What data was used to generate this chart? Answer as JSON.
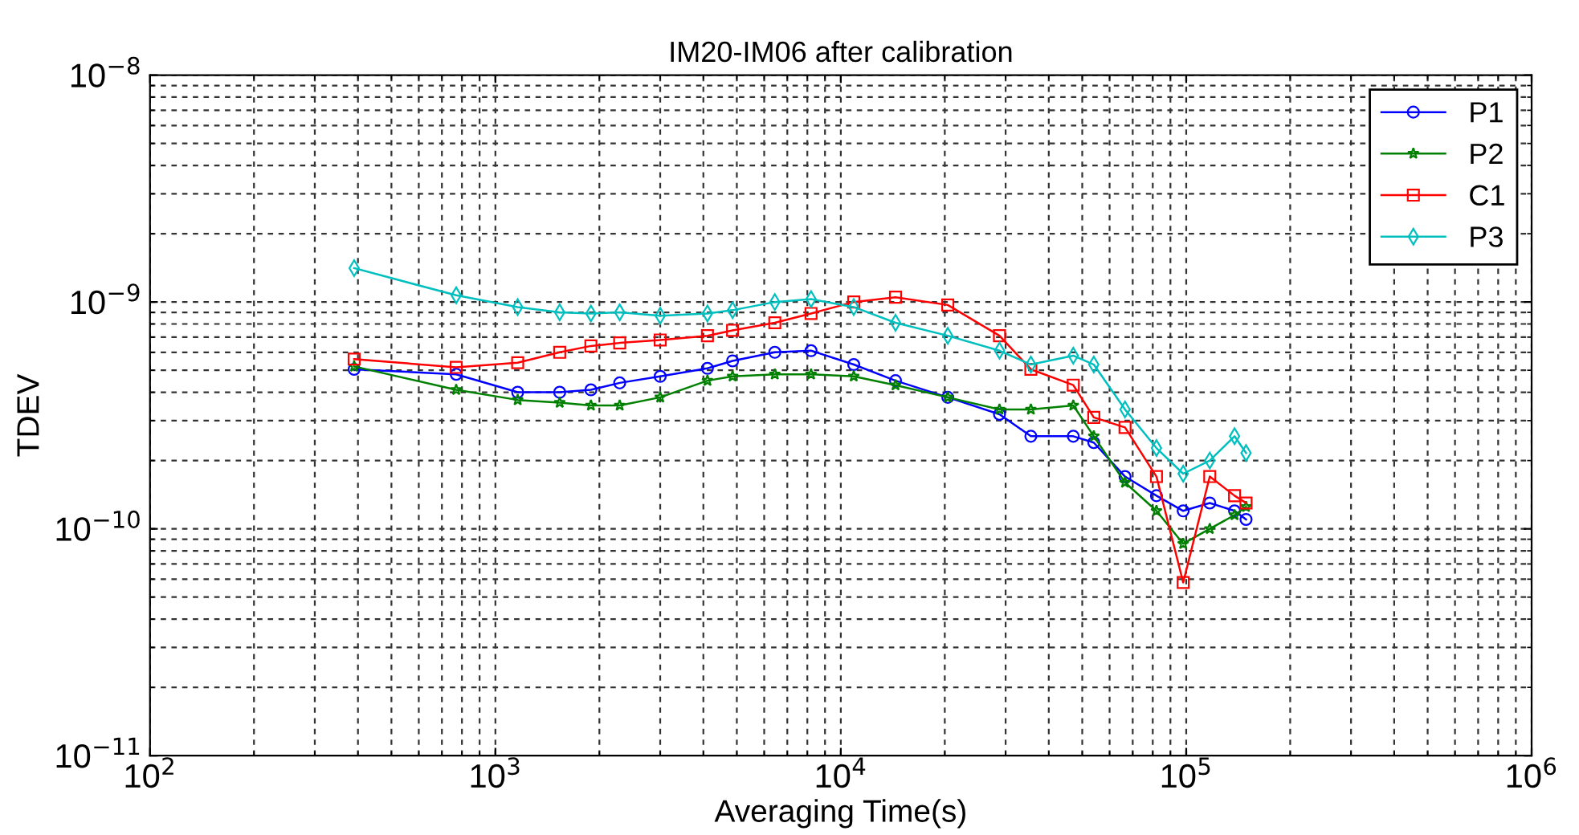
{
  "chart_data": {
    "type": "line",
    "title": "IM20-IM06 after calibration",
    "xlabel": "Averaging Time(s)",
    "ylabel": "TDEV",
    "log": "xy",
    "grid": true,
    "legend": "top right",
    "xlim": [
      100,
      1000000
    ],
    "ylim": [
      1e-11,
      1e-08
    ],
    "xticks": [
      {
        "value": 100,
        "label": "10$^{2}$"
      },
      {
        "value": 1000,
        "label": "10$^{3}$"
      },
      {
        "value": 10000,
        "label": "10$^{4}$"
      },
      {
        "value": 100000,
        "label": "10$^{5}$"
      },
      {
        "value": 1000000,
        "label": "10$^{6}$"
      }
    ],
    "yticks": [
      {
        "value": 1e-11,
        "label": "10$^{−11}$"
      },
      {
        "value": 1e-10,
        "label": "10$^{−10}$"
      },
      {
        "value": 1e-09,
        "label": "10$^{−9}$"
      },
      {
        "value": 1e-08,
        "label": "10$^{−8}$"
      }
    ],
    "x": [
      390,
      770,
      1160,
      1535,
      1890,
      2290,
      3000,
      4110,
      4860,
      6440,
      8200,
      10900,
      14400,
      20400,
      28800,
      35500,
      47100,
      54000,
      66500,
      82000,
      98000,
      117000,
      138000,
      149000
    ],
    "series": [
      {
        "name": "P1",
        "color": "#0000ff",
        "marker": "circle",
        "values": [
          5.05e-10,
          4.8e-10,
          4e-10,
          4e-10,
          4.1e-10,
          4.4e-10,
          4.7e-10,
          5.1e-10,
          5.5e-10,
          6e-10,
          6.1e-10,
          5.3e-10,
          4.5e-10,
          3.8e-10,
          3.2e-10,
          2.56e-10,
          2.56e-10,
          2.4e-10,
          1.7e-10,
          1.4e-10,
          1.2e-10,
          1.3e-10,
          1.2e-10,
          1.1e-10
        ]
      },
      {
        "name": "P2",
        "color": "#008000",
        "marker": "star",
        "values": [
          5.2e-10,
          4.1e-10,
          3.7e-10,
          3.6e-10,
          3.5e-10,
          3.5e-10,
          3.8e-10,
          4.5e-10,
          4.7e-10,
          4.8e-10,
          4.8e-10,
          4.7e-10,
          4.3e-10,
          3.8e-10,
          3.36e-10,
          3.36e-10,
          3.5e-10,
          2.56e-10,
          1.6e-10,
          1.2e-10,
          8.6e-11,
          1e-10,
          1.15e-10,
          1.25e-10
        ]
      },
      {
        "name": "C1",
        "color": "#ff0000",
        "marker": "square",
        "values": [
          5.6e-10,
          5.15e-10,
          5.4e-10,
          6e-10,
          6.4e-10,
          6.6e-10,
          6.8e-10,
          7.1e-10,
          7.5e-10,
          8.1e-10,
          8.9e-10,
          1e-09,
          1.05e-09,
          9.7e-10,
          7.1e-10,
          5.05e-10,
          4.3e-10,
          3.1e-10,
          2.8e-10,
          1.7e-10,
          5.8e-11,
          1.7e-10,
          1.4e-10,
          1.3e-10
        ]
      },
      {
        "name": "P3",
        "color": "#00bfbf",
        "marker": "diamond",
        "values": [
          1.41e-09,
          1.07e-09,
          9.5e-10,
          9e-10,
          8.9e-10,
          9e-10,
          8.7e-10,
          8.9e-10,
          9.2e-10,
          1e-09,
          1.03e-09,
          9.5e-10,
          8.1e-10,
          7.1e-10,
          6.1e-10,
          5.3e-10,
          5.8e-10,
          5.3e-10,
          3.36e-10,
          2.27e-10,
          1.75e-10,
          2e-10,
          2.56e-10,
          2.16e-10
        ]
      }
    ]
  }
}
